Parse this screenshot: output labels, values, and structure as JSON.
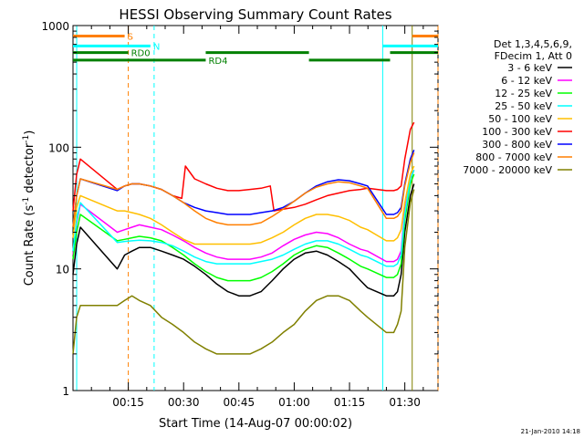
{
  "chart_data": {
    "type": "line",
    "title": "HESSI Observing Summary Count Rates",
    "xlabel": "Start Time (14-Aug-07 00:00:02)",
    "ylabel_main": "Count Rate (s",
    "ylabel_sup1": "-1",
    "ylabel_mid": " detector",
    "ylabel_sup2": "-1",
    "ylabel_end": ")",
    "x_unit": "minutes after 00:00:02",
    "xlim": [
      0,
      99
    ],
    "ylim": [
      1,
      1000
    ],
    "yscale": "log",
    "x_ticks": [
      {
        "at": 15,
        "label": "00:15"
      },
      {
        "at": 30,
        "label": "00:30"
      },
      {
        "at": 45,
        "label": "00:45"
      },
      {
        "at": 60,
        "label": "01:00"
      },
      {
        "at": 75,
        "label": "01:15"
      },
      {
        "at": 90,
        "label": "01:30"
      }
    ],
    "y_ticks": [
      {
        "at": 1,
        "label": "1"
      },
      {
        "at": 10,
        "label": "10"
      },
      {
        "at": 100,
        "label": "100"
      },
      {
        "at": 1000,
        "label": "1000"
      }
    ],
    "legend_position": "right",
    "legend_header": [
      "Det 1,3,4,5,6,9,",
      "FDecim 1, Att 0"
    ],
    "series": [
      {
        "name": "3 - 6 keV",
        "color": "#000000",
        "x": [
          0,
          1,
          2,
          12,
          14,
          16,
          18,
          21,
          24,
          27,
          30,
          33,
          36,
          39,
          42,
          45,
          48,
          51,
          54,
          57,
          60,
          63,
          66,
          69,
          72,
          75,
          78,
          79.9,
          85,
          86,
          87,
          88,
          89,
          90,
          91.5,
          92.5
        ],
        "y": [
          9,
          16,
          22,
          10,
          13,
          14,
          15,
          15,
          14,
          13,
          12,
          10.5,
          9,
          7.5,
          6.5,
          6,
          6,
          6.5,
          8,
          10,
          12,
          13.5,
          14,
          13,
          11.5,
          10,
          8,
          7,
          6,
          6,
          6,
          6.5,
          9,
          20,
          40,
          50
        ]
      },
      {
        "name": "6 - 12 keV",
        "color": "#ff00ff",
        "x": [
          0,
          1,
          2,
          12,
          14,
          16,
          18,
          21,
          24,
          27,
          30,
          33,
          36,
          39,
          42,
          45,
          48,
          51,
          54,
          57,
          60,
          63,
          66,
          69,
          72,
          75,
          78,
          79.9,
          85,
          86,
          87,
          88,
          89,
          90,
          91.5,
          92.5
        ],
        "y": [
          13,
          24,
          34,
          20,
          21,
          22,
          23,
          22,
          21,
          19,
          17,
          15,
          13.5,
          12.5,
          12,
          12,
          12,
          12.5,
          13.5,
          15.5,
          17.5,
          19,
          20,
          19.5,
          18,
          16,
          14.5,
          14,
          11.5,
          11.5,
          11.5,
          12,
          14,
          30,
          55,
          65
        ]
      },
      {
        "name": "12 - 25 keV",
        "color": "#00ff00",
        "x": [
          0,
          1,
          2,
          12,
          14,
          16,
          18,
          21,
          24,
          27,
          30,
          33,
          36,
          39,
          42,
          45,
          48,
          51,
          54,
          57,
          60,
          63,
          66,
          69,
          72,
          75,
          78,
          79.9,
          85,
          86,
          87,
          88,
          89,
          90,
          91.5,
          92.5
        ],
        "y": [
          12,
          20,
          28,
          17,
          17.5,
          18,
          18.5,
          18,
          17,
          15,
          13,
          11,
          9.5,
          8.5,
          8,
          8,
          8,
          8.5,
          9.5,
          11,
          13,
          14.5,
          15.5,
          15,
          13.5,
          12,
          10.5,
          10,
          8.5,
          8.5,
          8.5,
          9,
          11,
          25,
          50,
          60
        ]
      },
      {
        "name": "25 - 50 keV",
        "color": "#00ffff",
        "x": [
          0,
          1,
          2,
          12,
          14,
          16,
          18,
          21,
          24,
          27,
          30,
          33,
          36,
          39,
          42,
          45,
          48,
          51,
          54,
          57,
          60,
          63,
          66,
          69,
          72,
          75,
          78,
          79.9,
          85,
          86,
          87,
          88,
          89,
          90,
          91.5,
          92.5
        ],
        "y": [
          14,
          25,
          35,
          16.5,
          16.8,
          17,
          17.2,
          17,
          16.5,
          15.5,
          14,
          12.5,
          11.5,
          11,
          11,
          11,
          11,
          11.5,
          12,
          13,
          14.5,
          16,
          17,
          17,
          16,
          14.5,
          13,
          12.5,
          10.5,
          10.5,
          10.5,
          11,
          13,
          28,
          55,
          65
        ]
      },
      {
        "name": "50 - 100 keV",
        "color": "#ffbf00",
        "x": [
          0,
          1,
          2,
          12,
          14,
          16,
          18,
          21,
          24,
          27,
          30,
          33,
          36,
          39,
          42,
          45,
          48,
          51,
          54,
          57,
          60,
          63,
          66,
          69,
          72,
          75,
          78,
          79.9,
          85,
          86,
          87,
          88,
          89,
          90,
          91.5,
          92.5
        ],
        "y": [
          18,
          32,
          40,
          30,
          30,
          29,
          28,
          26,
          23,
          20,
          17.5,
          16,
          16,
          16,
          16,
          16,
          16,
          16.5,
          18,
          20,
          23,
          26,
          28,
          28,
          27,
          25,
          22,
          21,
          17,
          17,
          17,
          18,
          21,
          35,
          60,
          70
        ]
      },
      {
        "name": "100 - 300 keV",
        "color": "#ff0000",
        "x": [
          0,
          1,
          2,
          12,
          14,
          16,
          18,
          21,
          24,
          27,
          29.5,
          30.5,
          33,
          36,
          39,
          42,
          45,
          48,
          51,
          53.5,
          54.5,
          57,
          60,
          63,
          66,
          69,
          72,
          75,
          78,
          79.9,
          85,
          86,
          87,
          88,
          89,
          90,
          91.5,
          92.5
        ],
        "y": [
          30,
          60,
          80,
          45,
          48,
          50,
          50,
          48,
          45,
          40,
          38,
          70,
          55,
          50,
          46,
          44,
          44,
          45,
          46,
          48,
          30,
          31,
          32,
          34,
          37,
          40,
          42,
          44,
          45,
          46,
          44,
          44,
          44,
          45,
          48,
          80,
          140,
          160
        ]
      },
      {
        "name": "300 - 800 keV",
        "color": "#0000ff",
        "x": [
          0,
          1,
          2,
          12,
          14,
          16,
          18,
          21,
          24,
          27,
          30,
          33,
          36,
          39,
          42,
          45,
          48,
          51,
          54,
          57,
          60,
          63,
          66,
          69,
          72,
          75,
          78,
          79.9,
          85,
          86,
          87,
          88,
          89,
          90,
          91.5,
          92.5
        ],
        "y": [
          22,
          40,
          55,
          44,
          48,
          50,
          50,
          48,
          45,
          40,
          35,
          32,
          30,
          29,
          28,
          28,
          28,
          29,
          30,
          32,
          36,
          42,
          48,
          52,
          54,
          53,
          50,
          48,
          28,
          28,
          28,
          29,
          32,
          50,
          80,
          95
        ]
      },
      {
        "name": "800 - 7000 keV",
        "color": "#ff7f00",
        "x": [
          0,
          1,
          2,
          12,
          14,
          16,
          18,
          21,
          24,
          27,
          30,
          33,
          36,
          39,
          42,
          45,
          48,
          51,
          54,
          57,
          60,
          63,
          66,
          69,
          72,
          75,
          78,
          79.9,
          85,
          86,
          87,
          88,
          89,
          90,
          91.5,
          92.5
        ],
        "y": [
          22,
          40,
          55,
          45,
          48,
          50,
          50,
          48,
          45,
          40,
          35,
          30,
          26,
          24,
          23,
          23,
          23,
          24,
          27,
          31,
          36,
          42,
          47,
          50,
          52,
          51,
          48,
          46,
          26,
          26,
          26,
          27,
          30,
          48,
          75,
          90
        ]
      },
      {
        "name": "7000 - 20000 keV",
        "color": "#808000",
        "x": [
          0,
          1,
          2,
          12,
          14,
          16,
          18,
          21,
          24,
          27,
          30,
          33,
          36,
          39,
          42,
          45,
          48,
          51,
          54,
          57,
          60,
          63,
          66,
          69,
          72,
          75,
          78,
          79.9,
          85,
          86,
          87,
          88,
          89,
          90,
          91.5,
          92.5
        ],
        "y": [
          2,
          4,
          5,
          5,
          5.5,
          6,
          5.5,
          5,
          4,
          3.5,
          3,
          2.5,
          2.2,
          2,
          2,
          2,
          2,
          2.2,
          2.5,
          3,
          3.5,
          4.5,
          5.5,
          6,
          6,
          5.5,
          4.5,
          4,
          3,
          3,
          3,
          3.5,
          4.5,
          15,
          35,
          45
        ]
      }
    ],
    "event_lines": [
      {
        "x": 1,
        "color": "#00ffff",
        "style": "solid"
      },
      {
        "x": 15,
        "color": "#ff7f00",
        "style": "dashed"
      },
      {
        "x": 22,
        "color": "#00ffff",
        "style": "dashed"
      },
      {
        "x": 84,
        "color": "#00ffff",
        "style": "solid"
      },
      {
        "x": 92,
        "color": "#808000",
        "style": "solid"
      },
      {
        "x": 99,
        "color": "#ff7f00",
        "style": "dashed"
      }
    ],
    "flag_bars": [
      {
        "label": "S",
        "color": "#ff7f00",
        "y": 820,
        "segments": [
          [
            0,
            14
          ],
          [
            92,
            99
          ]
        ]
      },
      {
        "label": "N",
        "color": "#00ffff",
        "y": 680,
        "segments": [
          [
            0,
            21
          ],
          [
            84,
            99
          ]
        ]
      },
      {
        "label": "RD0",
        "color": "#008000",
        "y": 600,
        "segments": [
          [
            0,
            15
          ],
          [
            36,
            64
          ],
          [
            86,
            99
          ]
        ]
      },
      {
        "label": "RD4",
        "color": "#008000",
        "y": 520,
        "segments": [
          [
            0,
            36
          ],
          [
            64,
            86
          ]
        ]
      }
    ]
  },
  "footer_date": "21-Jan-2010 14:18"
}
